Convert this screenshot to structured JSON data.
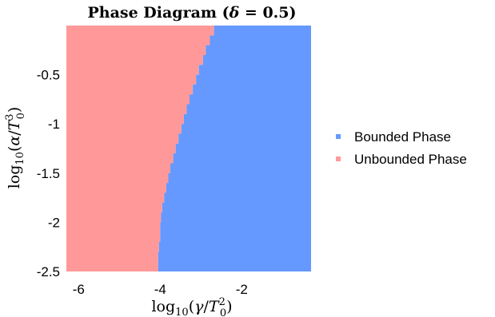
{
  "chart_data": {
    "type": "heatmap",
    "title": "Phase Diagram (δ = 0.5)",
    "xlabel": "log10(γ/T0²)",
    "ylabel": "log10(α/T0³)",
    "xlim": [
      -6.3,
      -0.3
    ],
    "ylim": [
      -2.5,
      0.0
    ],
    "x_ticks": [
      -6,
      -4,
      -2
    ],
    "x_tick_labels": [
      "-6",
      "-4",
      "-2"
    ],
    "y_ticks": [
      -2.5,
      -2,
      -1.5,
      -1,
      -0.5
    ],
    "y_tick_labels": [
      "-2.5",
      "-2",
      "-1.5",
      "-1",
      "-0.5"
    ],
    "legend_position": "right",
    "series": [
      {
        "name": "Bounded Phase",
        "color": "#6699ff"
      },
      {
        "name": "Unbounded Phase",
        "color": "#ff9999"
      }
    ],
    "boundary": {
      "description_x": "log10(γ/T0²) at phase boundary",
      "y": [
        -2.5,
        -2.3,
        -2.2,
        -2.0,
        -1.9,
        -1.8,
        -1.7,
        -1.6,
        -1.5,
        -1.4,
        -1.3,
        -1.2,
        -1.1,
        -1.0,
        -0.9,
        -0.8,
        -0.7,
        -0.6,
        -0.5,
        -0.4,
        -0.3,
        -0.2,
        -0.1,
        0.0
      ],
      "x": [
        -4.05,
        -4.03,
        -4.0,
        -3.98,
        -3.95,
        -3.9,
        -3.85,
        -3.8,
        -3.75,
        -3.68,
        -3.62,
        -3.55,
        -3.48,
        -3.42,
        -3.35,
        -3.28,
        -3.2,
        -3.12,
        -3.05,
        -2.95,
        -2.88,
        -2.78,
        -2.68,
        -2.58
      ]
    }
  },
  "legend": {
    "items": [
      {
        "label": "Bounded Phase",
        "color": "#6699ff"
      },
      {
        "label": "Unbounded Phase",
        "color": "#ff9999"
      }
    ]
  }
}
